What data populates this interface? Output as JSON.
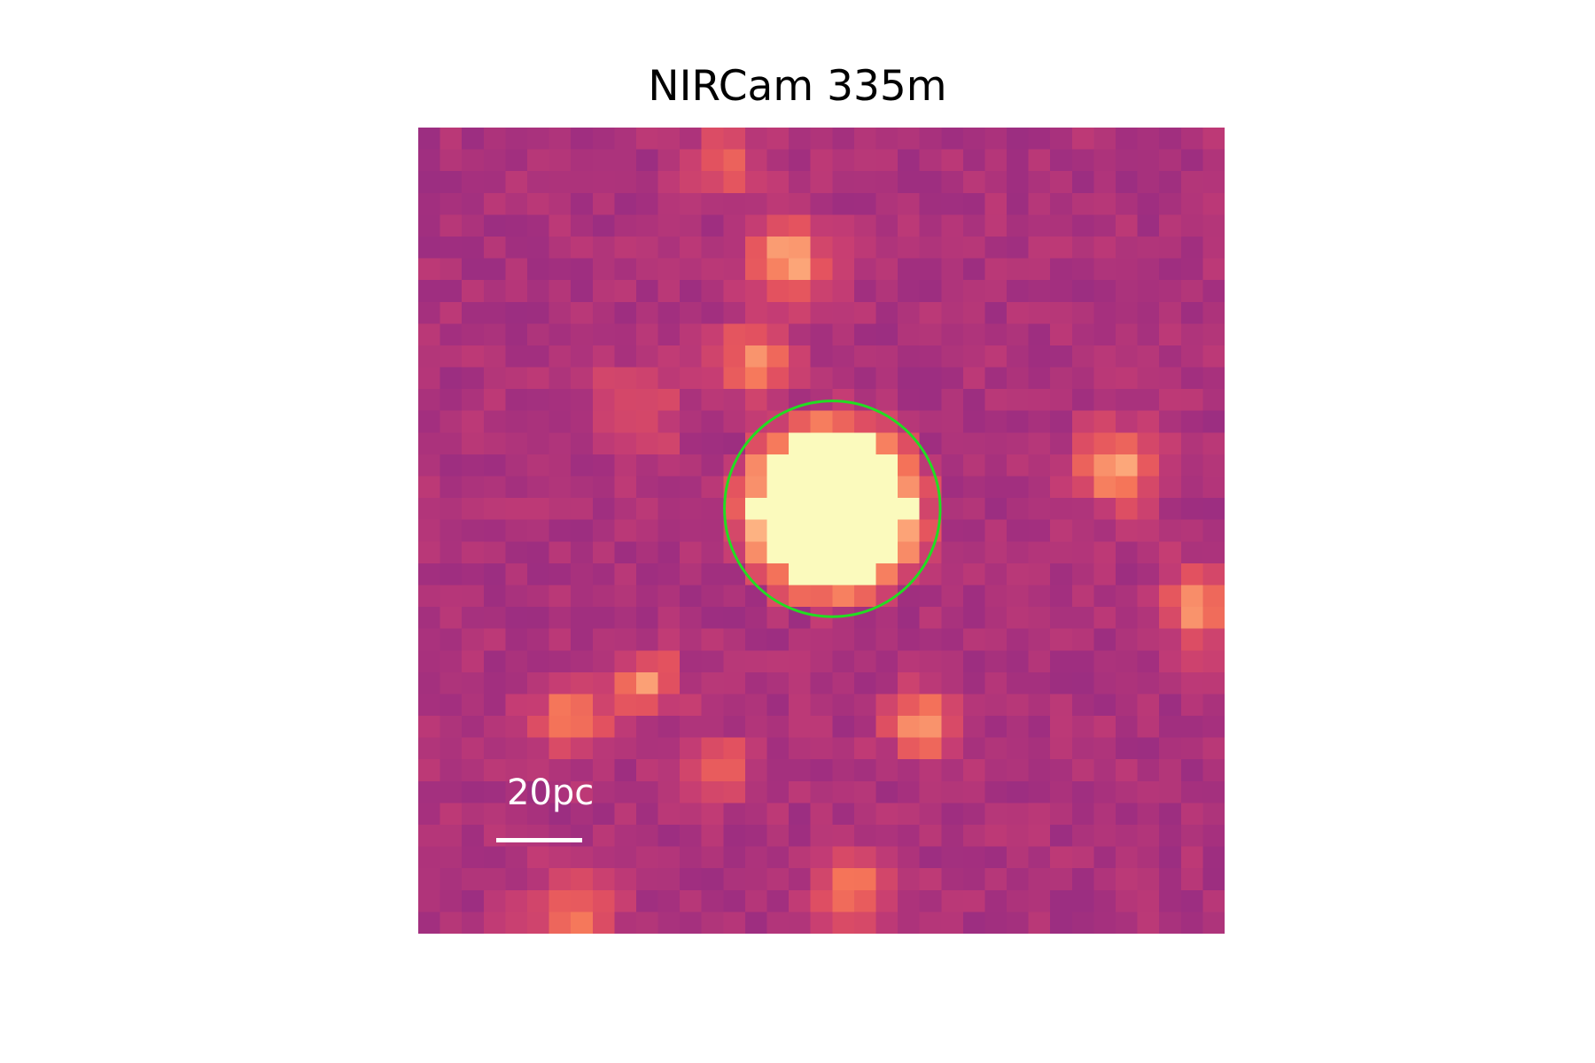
{
  "title": "NIRCam 335m",
  "scale_bar": {
    "label": "20pc",
    "color": "#ffffff"
  },
  "aperture": {
    "color": "#22dd22"
  },
  "colormap": [
    "#8b2a86",
    "#a22f7f",
    "#c43c74",
    "#e3525f",
    "#f57559",
    "#fdae7e",
    "#fbfabd"
  ],
  "image": {
    "grid_size": 37,
    "source": {
      "center": [
        19,
        17.5
      ],
      "radius": 3.6
    },
    "blobs": [
      {
        "center": [
          17,
          5.9
        ],
        "strength": 0.65,
        "width": 1.2
      },
      {
        "center": [
          15.5,
          10.7
        ],
        "strength": 0.5,
        "width": 1.2
      },
      {
        "center": [
          32,
          15.5
        ],
        "strength": 0.6,
        "width": 1.3
      },
      {
        "center": [
          36,
          22
        ],
        "strength": 0.55,
        "width": 1.3
      },
      {
        "center": [
          7,
          27
        ],
        "strength": 0.5,
        "width": 1.2
      },
      {
        "center": [
          10.5,
          25.5
        ],
        "strength": 0.55,
        "width": 1.0
      },
      {
        "center": [
          23,
          27.5
        ],
        "strength": 0.65,
        "width": 1.0
      },
      {
        "center": [
          14,
          29.5
        ],
        "strength": 0.4,
        "width": 1.0
      },
      {
        "center": [
          20,
          35
        ],
        "strength": 0.45,
        "width": 1.2
      },
      {
        "center": [
          7,
          36.5
        ],
        "strength": 0.4,
        "width": 1.5
      },
      {
        "center": [
          14,
          1.8
        ],
        "strength": 0.35,
        "width": 1.1
      },
      {
        "center": [
          10,
          13
        ],
        "strength": 0.3,
        "width": 1.5
      }
    ]
  }
}
